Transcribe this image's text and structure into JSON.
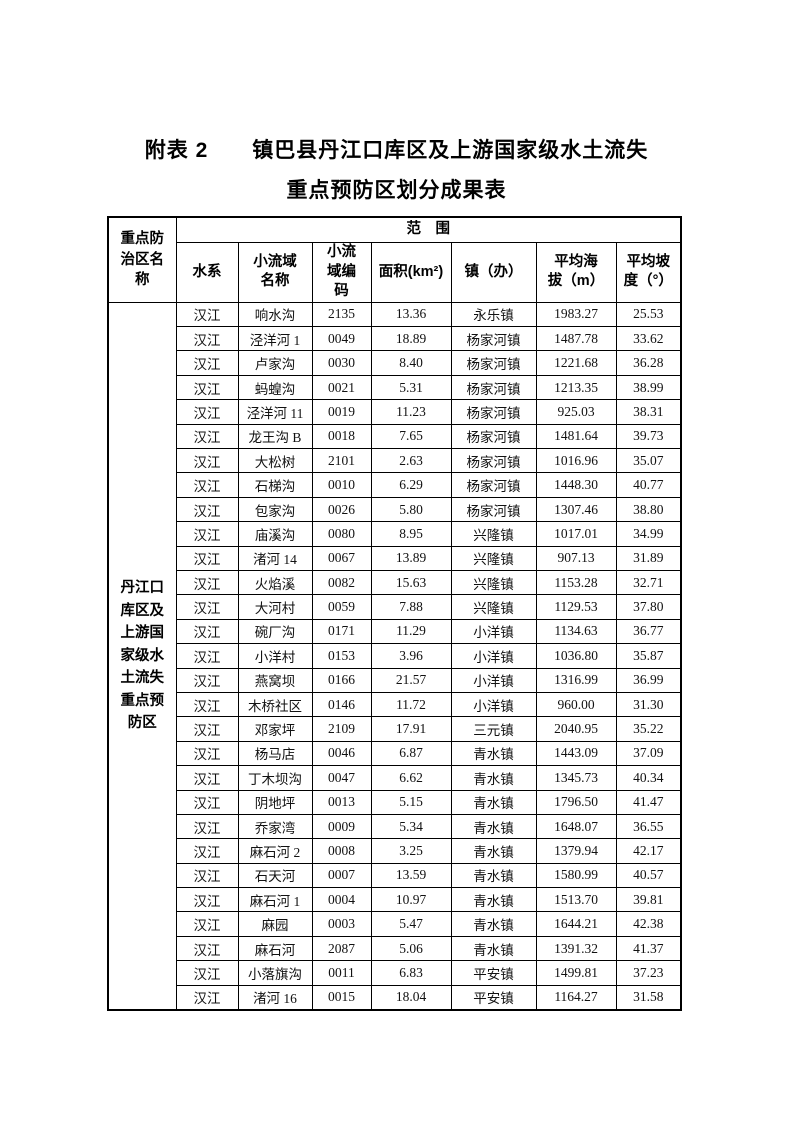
{
  "page": {
    "title_line1": "附表 2　　镇巴县丹江口库区及上游国家级水土流失",
    "title_line2": "重点预防区划分成果表"
  },
  "table": {
    "header": {
      "region_name": "重点防\n治区名\n称",
      "scope": "范　围",
      "columns": [
        "水系",
        "小流域\n名称",
        "小流\n域编\n码",
        "面积(km²)",
        "镇（办）",
        "平均海\n拔（m）",
        "平均坡\n度（°）"
      ]
    },
    "region_label": "丹江口\n库区及\n上游国\n家级水\n土流失\n重点预\n防区",
    "rows": [
      [
        "汉江",
        "响水沟",
        "2135",
        "13.36",
        "永乐镇",
        "1983.27",
        "25.53"
      ],
      [
        "汉江",
        "泾洋河 1",
        "0049",
        "18.89",
        "杨家河镇",
        "1487.78",
        "33.62"
      ],
      [
        "汉江",
        "卢家沟",
        "0030",
        "8.40",
        "杨家河镇",
        "1221.68",
        "36.28"
      ],
      [
        "汉江",
        "蚂蝗沟",
        "0021",
        "5.31",
        "杨家河镇",
        "1213.35",
        "38.99"
      ],
      [
        "汉江",
        "泾洋河 11",
        "0019",
        "11.23",
        "杨家河镇",
        "925.03",
        "38.31"
      ],
      [
        "汉江",
        "龙王沟 B",
        "0018",
        "7.65",
        "杨家河镇",
        "1481.64",
        "39.73"
      ],
      [
        "汉江",
        "大松树",
        "2101",
        "2.63",
        "杨家河镇",
        "1016.96",
        "35.07"
      ],
      [
        "汉江",
        "石梯沟",
        "0010",
        "6.29",
        "杨家河镇",
        "1448.30",
        "40.77"
      ],
      [
        "汉江",
        "包家沟",
        "0026",
        "5.80",
        "杨家河镇",
        "1307.46",
        "38.80"
      ],
      [
        "汉江",
        "庙溪沟",
        "0080",
        "8.95",
        "兴隆镇",
        "1017.01",
        "34.99"
      ],
      [
        "汉江",
        "渚河 14",
        "0067",
        "13.89",
        "兴隆镇",
        "907.13",
        "31.89"
      ],
      [
        "汉江",
        "火焰溪",
        "0082",
        "15.63",
        "兴隆镇",
        "1153.28",
        "32.71"
      ],
      [
        "汉江",
        "大河村",
        "0059",
        "7.88",
        "兴隆镇",
        "1129.53",
        "37.80"
      ],
      [
        "汉江",
        "碗厂沟",
        "0171",
        "11.29",
        "小洋镇",
        "1134.63",
        "36.77"
      ],
      [
        "汉江",
        "小洋村",
        "0153",
        "3.96",
        "小洋镇",
        "1036.80",
        "35.87"
      ],
      [
        "汉江",
        "燕窝坝",
        "0166",
        "21.57",
        "小洋镇",
        "1316.99",
        "36.99"
      ],
      [
        "汉江",
        "木桥社区",
        "0146",
        "11.72",
        "小洋镇",
        "960.00",
        "31.30"
      ],
      [
        "汉江",
        "邓家坪",
        "2109",
        "17.91",
        "三元镇",
        "2040.95",
        "35.22"
      ],
      [
        "汉江",
        "杨马店",
        "0046",
        "6.87",
        "青水镇",
        "1443.09",
        "37.09"
      ],
      [
        "汉江",
        "丁木坝沟",
        "0047",
        "6.62",
        "青水镇",
        "1345.73",
        "40.34"
      ],
      [
        "汉江",
        "阴地坪",
        "0013",
        "5.15",
        "青水镇",
        "1796.50",
        "41.47"
      ],
      [
        "汉江",
        "乔家湾",
        "0009",
        "5.34",
        "青水镇",
        "1648.07",
        "36.55"
      ],
      [
        "汉江",
        "麻石河 2",
        "0008",
        "3.25",
        "青水镇",
        "1379.94",
        "42.17"
      ],
      [
        "汉江",
        "石天河",
        "0007",
        "13.59",
        "青水镇",
        "1580.99",
        "40.57"
      ],
      [
        "汉江",
        "麻石河 1",
        "0004",
        "10.97",
        "青水镇",
        "1513.70",
        "39.81"
      ],
      [
        "汉江",
        "麻园",
        "0003",
        "5.47",
        "青水镇",
        "1644.21",
        "42.38"
      ],
      [
        "汉江",
        "麻石河",
        "2087",
        "5.06",
        "青水镇",
        "1391.32",
        "41.37"
      ],
      [
        "汉江",
        "小落旗沟",
        "0011",
        "6.83",
        "平安镇",
        "1499.81",
        "37.23"
      ],
      [
        "汉江",
        "渚河 16",
        "0015",
        "18.04",
        "平安镇",
        "1164.27",
        "31.58"
      ]
    ]
  }
}
